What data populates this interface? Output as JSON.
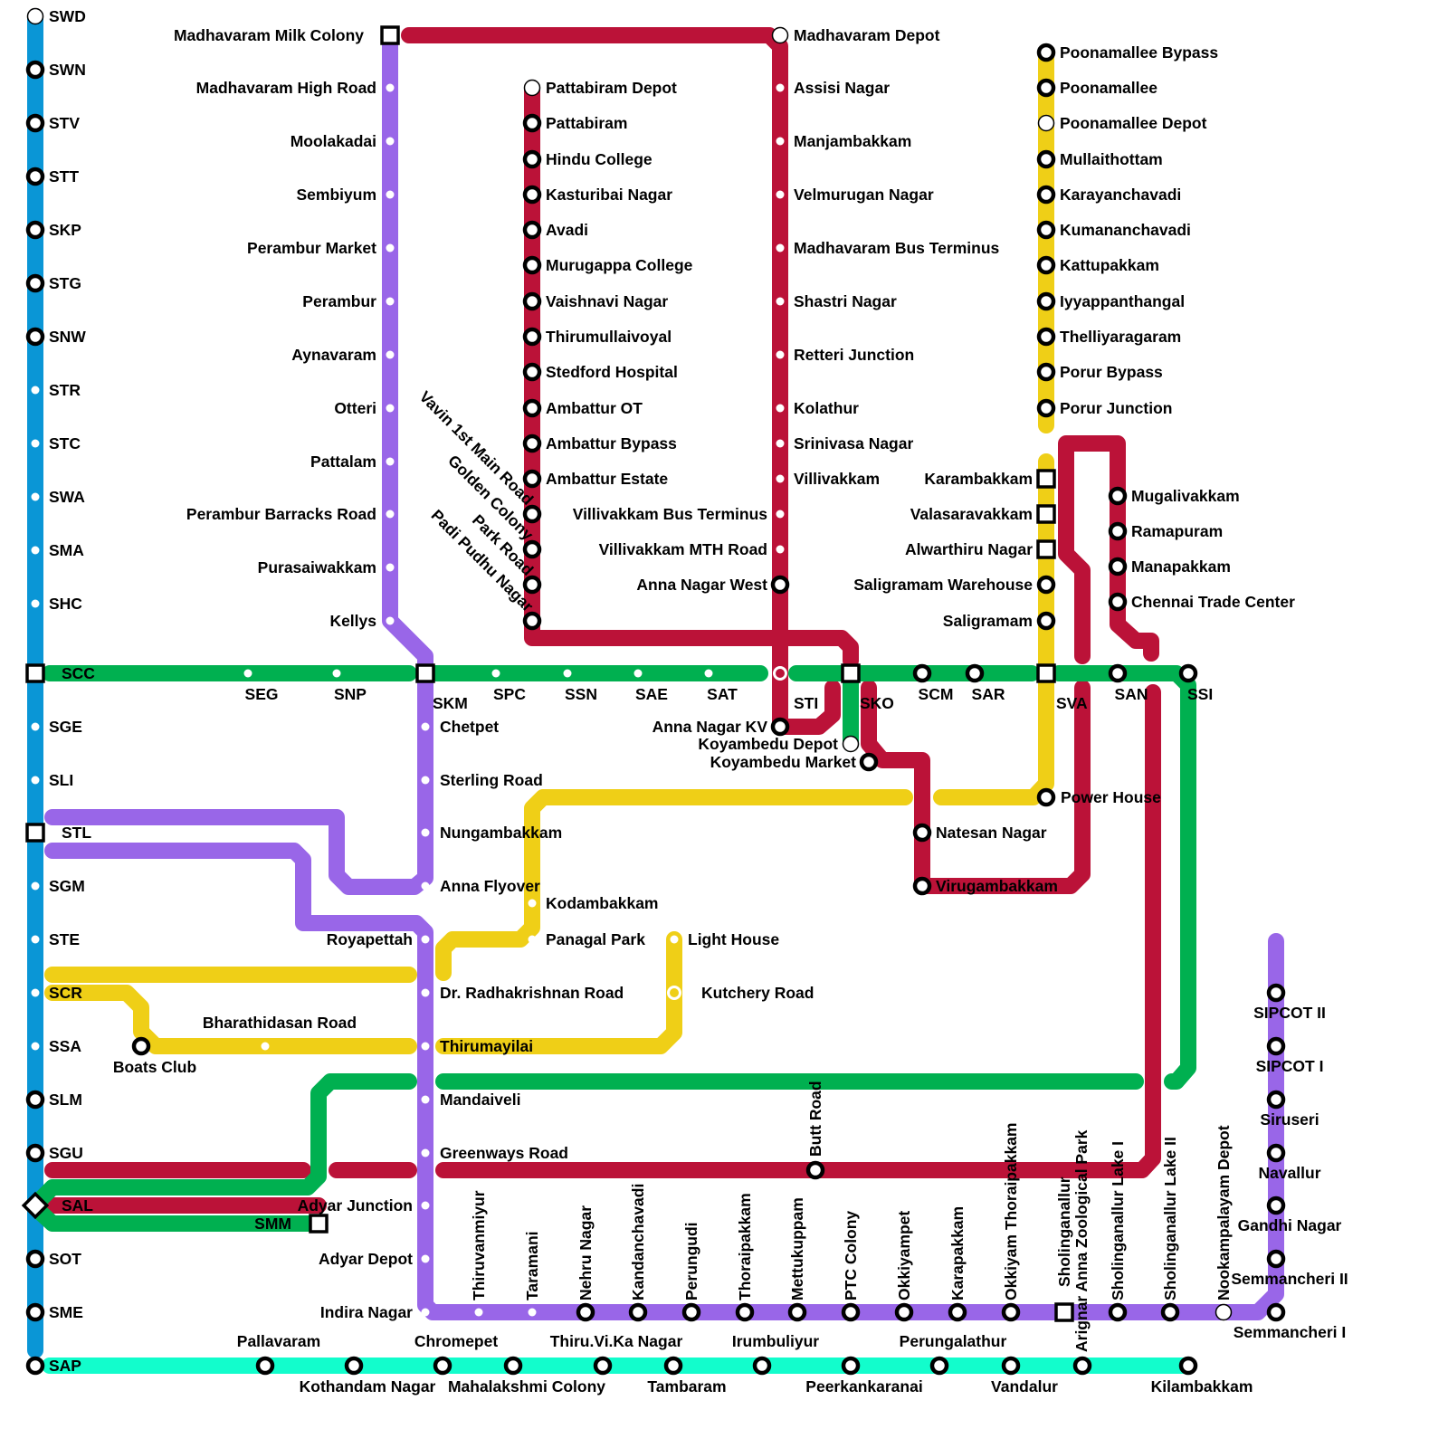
{
  "colors": {
    "blue": "#0a96d6",
    "purple": "#9966e8",
    "red": "#bb1238",
    "green": "#00b050",
    "yellow": "#efcf17",
    "cyan": "#12fdcc",
    "station_outline": "#000000",
    "background": "#ffffff"
  },
  "stations": {
    "blue": [
      "SWD",
      "SWN",
      "STV",
      "STT",
      "SKP",
      "STG",
      "SNW",
      "STR",
      "STC",
      "SWA",
      "SMA",
      "SHC",
      "SCC",
      "SGE",
      "SLI",
      "STL",
      "SGM",
      "STE",
      "SCR",
      "SSA",
      "SLM",
      "SGU",
      "SAL",
      "SOT",
      "SME",
      "SAP"
    ],
    "green": [
      "SEG",
      "SNP",
      "SKM",
      "SPC",
      "SSN",
      "SAE",
      "SAT",
      "STI",
      "SKO",
      "SCM",
      "SAR",
      "SVA",
      "SAN",
      "SSI",
      "Koyambedu Depot",
      "SMM"
    ],
    "purple_north": [
      "Madhavaram Milk Colony",
      "Madhavaram High Road",
      "Moolakadai",
      "Sembiyum",
      "Perambur Market",
      "Perambur",
      "Aynavaram",
      "Otteri",
      "Pattalam",
      "Perambur Barracks Road",
      "Purasaiwakkam",
      "Kellys"
    ],
    "purple_south": [
      "Chetpet",
      "Sterling Road",
      "Nungambakkam",
      "Anna Flyover",
      "Royapettah",
      "Dr. Radhakrishnan Road",
      "Thirumayilai",
      "Mandaiveli",
      "Greenways Road",
      "Adyar Junction",
      "Adyar Depot",
      "Indira Nagar"
    ],
    "purple_omr": [
      "Thiruvanmiyur",
      "Taramani",
      "Nehru Nagar",
      "Kandanchavadi",
      "Perungudi",
      "Thoraipakkam",
      "Mettukuppam",
      "PTC Colony",
      "Okkiyampet",
      "Karapakkam",
      "Okkiyam Thoraipakkam",
      "Sholinganallur",
      "Sholinganallur Lake I",
      "Sholinganallur Lake II",
      "Nookampalayam Depot",
      "Semmancheri I",
      "Semmancheri II",
      "Gandhi Nagar",
      "Navallur",
      "Siruseri",
      "SIPCOT I",
      "SIPCOT II"
    ],
    "red_west": [
      "Pattabiram Depot",
      "Pattabiram",
      "Hindu College",
      "Kasturibai Nagar",
      "Avadi",
      "Murugappa College",
      "Vaishnavi Nagar",
      "Thirumullaivoyal",
      "Stedford Hospital",
      "Ambattur OT",
      "Ambattur Bypass",
      "Ambattur Estate",
      "Vavin 1st Main Road",
      "Golden Colony",
      "Park Road",
      "Padi Pudhu Nagar"
    ],
    "red_east": [
      "Madhavaram Depot",
      "Assisi Nagar",
      "Manjambakkam",
      "Velmurugan Nagar",
      "Madhavaram Bus Terminus",
      "Shastri Nagar",
      "Retteri Junction",
      "Kolathur",
      "Srinivasa Nagar",
      "Villivakkam",
      "Villivakkam Bus Terminus",
      "Villivakkam MTH Road",
      "Anna Nagar West",
      "Anna Nagar KV"
    ],
    "red_other": [
      "Koyambedu Market",
      "Natesan Nagar",
      "Virugambakkam",
      "Mugalivakkam",
      "Ramapuram",
      "Manapakkam",
      "Chennai Trade Center",
      "Butt Road"
    ],
    "yellow_north": [
      "Poonamallee Bypass",
      "Poonamallee",
      "Poonamallee Depot",
      "Mullaithottam",
      "Karayanchavadi",
      "Kumananchavadi",
      "Kattupakkam",
      "Iyyappanthangal",
      "Thelliyaragaram",
      "Porur Bypass",
      "Porur Junction",
      "Karambakkam",
      "Valasaravakkam",
      "Alwarthiru Nagar",
      "Saligramam Warehouse",
      "Saligramam",
      "Power House"
    ],
    "yellow_other": [
      "Kodambakkam",
      "Panagal Park",
      "Light House",
      "Kutchery Road",
      "Boats Club",
      "Bharathidasan Road"
    ],
    "cyan": [
      "Pallavaram",
      "Kothandam Nagar",
      "Chromepet",
      "Mahalakshmi Colony",
      "Thiru.Vi.Ka Nagar",
      "Tambaram",
      "Irumbuliyur",
      "Peerkankaranai",
      "Perungalathur",
      "Vandalur",
      "Arignar Anna Zoological Park",
      "Kilambakkam"
    ]
  }
}
